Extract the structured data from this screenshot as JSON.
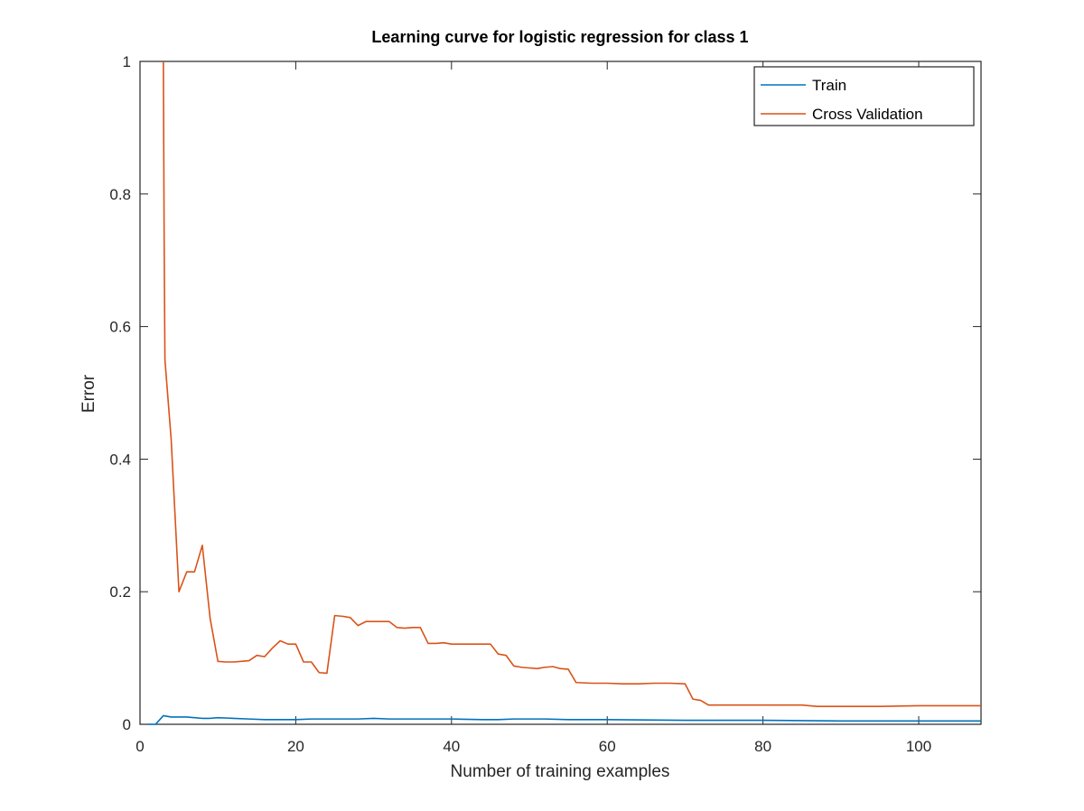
{
  "chart_data": {
    "type": "line",
    "title": "Learning curve for logistic regression for class 1",
    "xlabel": "Number of training examples",
    "ylabel": "Error",
    "xlim": [
      0,
      108
    ],
    "ylim": [
      0,
      1
    ],
    "xticks": [
      0,
      20,
      40,
      60,
      80,
      100
    ],
    "xtick_labels": [
      "0",
      "20",
      "40",
      "60",
      "80",
      "100"
    ],
    "yticks": [
      0,
      0.2,
      0.4,
      0.6,
      0.8,
      1
    ],
    "ytick_labels": [
      "0",
      "0.2",
      "0.4",
      "0.6",
      "0.8",
      "1"
    ],
    "grid": false,
    "legend_position": "top-right",
    "series": [
      {
        "name": "Train",
        "color": "#0072BD",
        "points": [
          [
            1,
            0
          ],
          [
            2,
            0
          ],
          [
            3,
            0.013
          ],
          [
            4,
            0.011
          ],
          [
            5,
            0.011
          ],
          [
            6,
            0.011
          ],
          [
            7,
            0.01
          ],
          [
            8,
            0.009
          ],
          [
            9,
            0.009
          ],
          [
            10,
            0.01
          ],
          [
            12,
            0.009
          ],
          [
            14,
            0.008
          ],
          [
            16,
            0.007
          ],
          [
            18,
            0.007
          ],
          [
            20,
            0.007
          ],
          [
            22,
            0.008
          ],
          [
            26,
            0.008
          ],
          [
            28,
            0.008
          ],
          [
            30,
            0.009
          ],
          [
            32,
            0.008
          ],
          [
            36,
            0.008
          ],
          [
            40,
            0.008
          ],
          [
            44,
            0.007
          ],
          [
            46,
            0.007
          ],
          [
            48,
            0.008
          ],
          [
            52,
            0.008
          ],
          [
            55,
            0.007
          ],
          [
            58,
            0.007
          ],
          [
            60,
            0.007
          ],
          [
            70,
            0.006
          ],
          [
            80,
            0.006
          ],
          [
            90,
            0.005
          ],
          [
            100,
            0.005
          ],
          [
            108,
            0.005
          ]
        ]
      },
      {
        "name": "Cross Validation",
        "color": "#D95319",
        "points": [
          [
            3,
            1
          ],
          [
            3.1,
            0.73
          ],
          [
            3.2,
            0.55
          ],
          [
            4,
            0.43
          ],
          [
            5,
            0.2
          ],
          [
            6,
            0.23
          ],
          [
            7,
            0.23
          ],
          [
            8,
            0.27
          ],
          [
            9,
            0.16
          ],
          [
            10,
            0.095
          ],
          [
            11,
            0.094
          ],
          [
            12,
            0.094
          ],
          [
            13,
            0.095
          ],
          [
            14,
            0.096
          ],
          [
            15,
            0.104
          ],
          [
            16,
            0.102
          ],
          [
            17,
            0.115
          ],
          [
            18,
            0.126
          ],
          [
            19,
            0.121
          ],
          [
            20,
            0.121
          ],
          [
            21,
            0.094
          ],
          [
            22,
            0.094
          ],
          [
            23,
            0.078
          ],
          [
            24,
            0.077
          ],
          [
            25,
            0.164
          ],
          [
            26,
            0.163
          ],
          [
            27,
            0.161
          ],
          [
            28,
            0.149
          ],
          [
            29,
            0.155
          ],
          [
            30,
            0.155
          ],
          [
            31,
            0.155
          ],
          [
            32,
            0.155
          ],
          [
            33,
            0.146
          ],
          [
            34,
            0.145
          ],
          [
            35,
            0.146
          ],
          [
            36,
            0.146
          ],
          [
            37,
            0.122
          ],
          [
            38,
            0.122
          ],
          [
            39,
            0.123
          ],
          [
            40,
            0.121
          ],
          [
            41,
            0.121
          ],
          [
            42,
            0.121
          ],
          [
            43,
            0.121
          ],
          [
            44,
            0.121
          ],
          [
            45,
            0.121
          ],
          [
            46,
            0.106
          ],
          [
            47,
            0.104
          ],
          [
            48,
            0.088
          ],
          [
            49,
            0.086
          ],
          [
            50,
            0.085
          ],
          [
            51,
            0.084
          ],
          [
            52,
            0.086
          ],
          [
            53,
            0.087
          ],
          [
            54,
            0.084
          ],
          [
            55,
            0.083
          ],
          [
            56,
            0.063
          ],
          [
            58,
            0.062
          ],
          [
            60,
            0.062
          ],
          [
            62,
            0.061
          ],
          [
            64,
            0.061
          ],
          [
            66,
            0.062
          ],
          [
            68,
            0.062
          ],
          [
            70,
            0.061
          ],
          [
            71,
            0.038
          ],
          [
            72,
            0.036
          ],
          [
            73,
            0.029
          ],
          [
            75,
            0.029
          ],
          [
            80,
            0.029
          ],
          [
            85,
            0.029
          ],
          [
            87,
            0.027
          ],
          [
            90,
            0.027
          ],
          [
            95,
            0.027
          ],
          [
            100,
            0.028
          ],
          [
            105,
            0.028
          ],
          [
            108,
            0.028
          ]
        ]
      }
    ]
  }
}
